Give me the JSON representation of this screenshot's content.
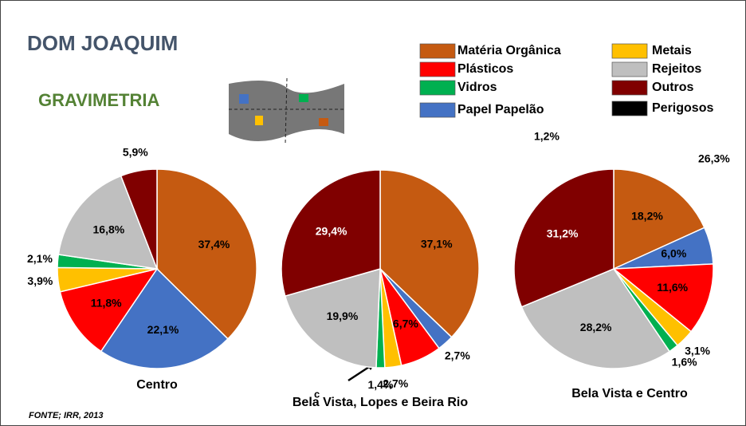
{
  "title": "DOM JOAQUIM",
  "subtitle": "GRAVIMETRIA",
  "source": "FONTE; IRR, 2013",
  "legend": [
    {
      "name": "Matéria Orgânica",
      "color": "#C55A11"
    },
    {
      "name": "Plásticos",
      "color": "#FF0000"
    },
    {
      "name": "Vidros",
      "color": "#00B050"
    },
    {
      "name": "Papel Papelão",
      "color": "#4472C4"
    },
    {
      "name": "Metais",
      "color": "#FFC000"
    },
    {
      "name": "Rejeitos",
      "color": "#BFBFBF"
    },
    {
      "name": "Outros",
      "color": "#800000"
    },
    {
      "name": "Perigosos",
      "color": "#000000"
    }
  ],
  "annotations": [
    "1,2%",
    "26,3%",
    "c"
  ],
  "chart_data": [
    {
      "type": "pie",
      "title": "Centro",
      "categories": [
        "Matéria Orgânica",
        "Papel Papelão",
        "Plásticos",
        "Metais",
        "Vidros",
        "Rejeitos",
        "Outros"
      ],
      "values": [
        37.4,
        22.1,
        11.8,
        3.9,
        2.1,
        16.8,
        5.9
      ],
      "value_labels": [
        "37,4%",
        "22,1%",
        "11,8%",
        "3,9%",
        "2,1%",
        "16,8%",
        "5,9%"
      ]
    },
    {
      "type": "pie",
      "title": "Bela Vista, Lopes e Beira Rio",
      "categories": [
        "Matéria Orgânica",
        "Papel Papelão",
        "Plásticos",
        "Metais",
        "Vidros",
        "Rejeitos",
        "Outros"
      ],
      "values": [
        37.1,
        2.7,
        6.7,
        2.7,
        1.4,
        19.9,
        29.4
      ],
      "value_labels": [
        "37,1%",
        "2,7%",
        "6,7%",
        "2,7%",
        "1,4%",
        "19,9%",
        "29,4%"
      ]
    },
    {
      "type": "pie",
      "title": "Bela Vista e Centro",
      "categories": [
        "Matéria Orgânica",
        "Papel Papelão",
        "Plásticos",
        "Metais",
        "Vidros",
        "Rejeitos",
        "Outros"
      ],
      "values": [
        18.2,
        6.0,
        11.6,
        3.1,
        1.6,
        28.2,
        31.2
      ],
      "value_labels": [
        "18,2%",
        "6,0%",
        "11,6%",
        "3,1%",
        "1,6%",
        "28,2%",
        "31,2%"
      ]
    }
  ]
}
